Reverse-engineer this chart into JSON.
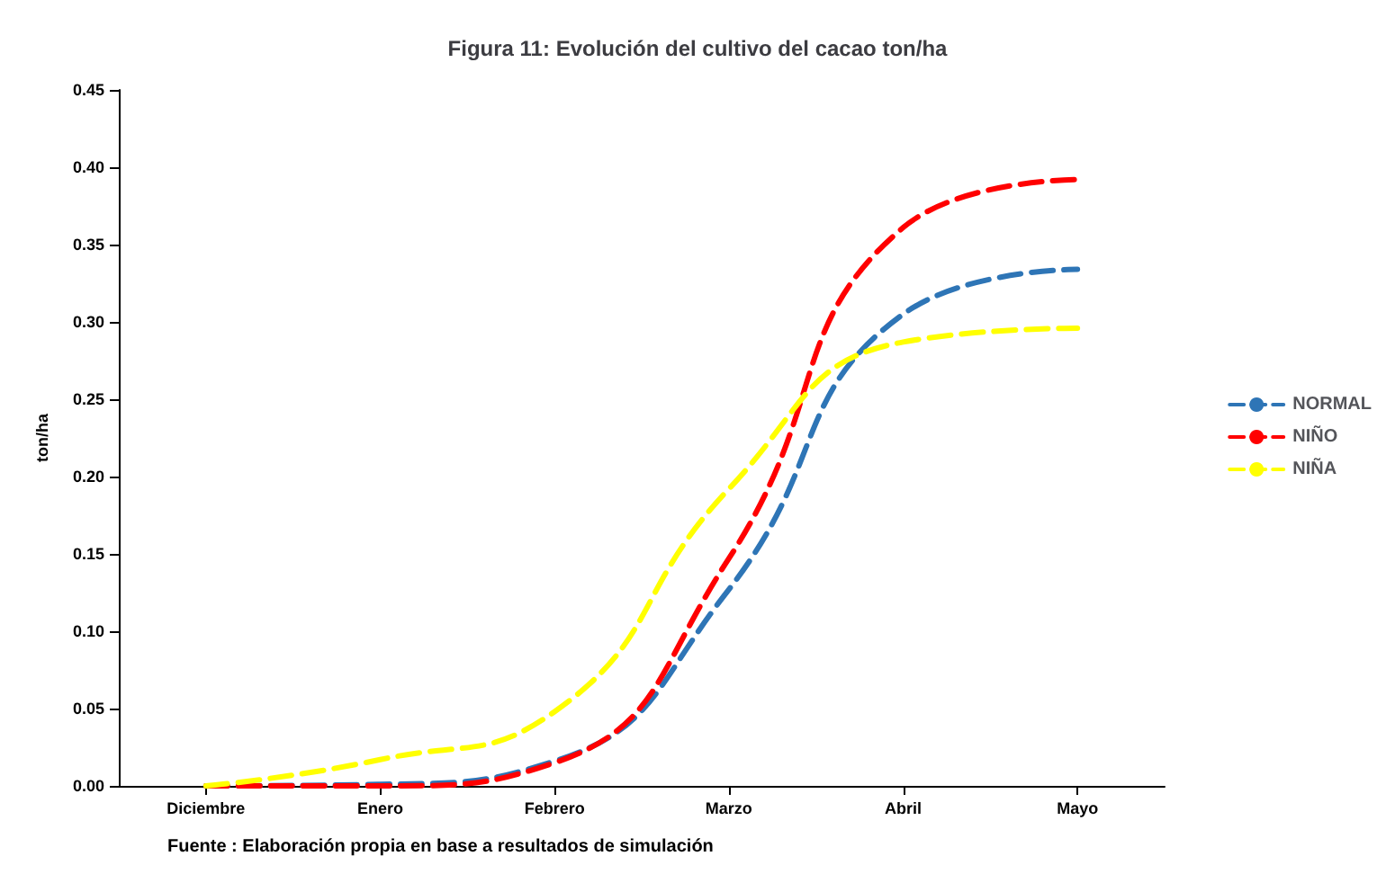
{
  "chart_data": {
    "type": "line",
    "title": "Figura 11: Evolución del cultivo del cacao ton/ha",
    "ylabel": "ton/ha",
    "categories": [
      "Diciembre",
      "Enero",
      "Febrero",
      "Marzo",
      "Abril",
      "Mayo"
    ],
    "series": [
      {
        "name": "NORMAL",
        "color": "#2e75b6",
        "values": [
          0,
          0.001,
          0.016,
          0.127,
          0.305,
          0.334
        ]
      },
      {
        "name": "NIÑO",
        "color": "#ff0000",
        "values": [
          0,
          0,
          0.015,
          0.147,
          0.361,
          0.392
        ]
      },
      {
        "name": "NIÑA",
        "color": "#ffff00",
        "values": [
          0,
          0.017,
          0.048,
          0.192,
          0.287,
          0.296
        ]
      }
    ],
    "ylim": [
      0,
      0.45
    ],
    "yticks": [
      {
        "value": 0,
        "label": "0.00"
      },
      {
        "value": 0.05,
        "label": "0.05"
      },
      {
        "value": 0.1,
        "label": "0.10"
      },
      {
        "value": 0.15,
        "label": "0.15"
      },
      {
        "value": 0.2,
        "label": "0.20"
      },
      {
        "value": 0.25,
        "label": "0.25"
      },
      {
        "value": 0.3,
        "label": "0.30"
      },
      {
        "value": 0.35,
        "label": "0.35"
      },
      {
        "value": 0.4,
        "label": "0.40"
      },
      {
        "value": 0.45,
        "label": "0.45"
      }
    ],
    "grid": false,
    "legend": "right",
    "marker": "none",
    "line_style": "dashed",
    "annotations": [
      "Fuente : Elaboración propia en base a resultados de simulación"
    ]
  }
}
